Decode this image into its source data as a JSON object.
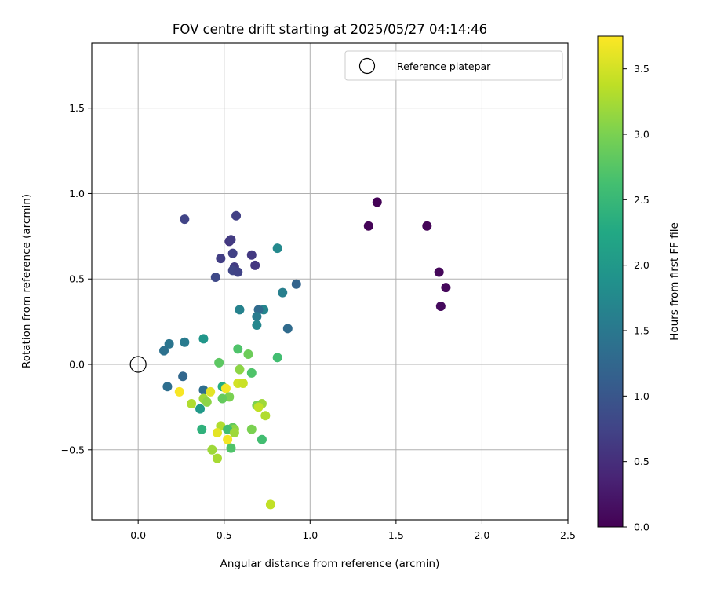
{
  "chart_data": {
    "type": "scatter",
    "title": "FOV centre drift starting at 2025/05/27 04:14:46",
    "xlabel": "Angular distance from reference (arcmin)",
    "ylabel": "Rotation from reference (arcmin)",
    "xlim": [
      -0.27,
      2.5
    ],
    "ylim": [
      -0.91,
      1.88
    ],
    "xticks": [
      0.0,
      0.5,
      1.0,
      1.5,
      2.0,
      2.5
    ],
    "yticks": [
      -0.5,
      0.0,
      0.5,
      1.0,
      1.5
    ],
    "xtick_labels": [
      "0.0",
      "0.5",
      "1.0",
      "1.5",
      "2.0",
      "2.5"
    ],
    "ytick_labels": [
      "−0.5",
      "0.0",
      "0.5",
      "1.0",
      "1.5"
    ],
    "grid": true,
    "legend": {
      "placement": "top-right",
      "entries": [
        "Reference platepar"
      ]
    },
    "reference_point": {
      "x": 0.0,
      "y": 0.0,
      "label": "Reference platepar"
    },
    "colorbar": {
      "label": "Hours from first FF file",
      "range": [
        0.0,
        3.75
      ],
      "ticks": [
        0.0,
        0.5,
        1.0,
        1.5,
        2.0,
        2.5,
        3.0,
        3.5
      ],
      "tick_labels": [
        "0.0",
        "0.5",
        "1.0",
        "1.5",
        "2.0",
        "2.5",
        "3.0",
        "3.5"
      ],
      "colormap": "viridis"
    },
    "points": [
      {
        "x": 1.39,
        "y": 0.95,
        "hours": 0.02
      },
      {
        "x": 1.34,
        "y": 0.81,
        "hours": 0.03
      },
      {
        "x": 1.68,
        "y": 0.81,
        "hours": 0.05
      },
      {
        "x": 1.75,
        "y": 0.54,
        "hours": 0.07
      },
      {
        "x": 1.79,
        "y": 0.45,
        "hours": 0.08
      },
      {
        "x": 1.76,
        "y": 0.34,
        "hours": 0.1
      },
      {
        "x": 0.57,
        "y": 0.87,
        "hours": 0.7
      },
      {
        "x": 0.27,
        "y": 0.85,
        "hours": 0.75
      },
      {
        "x": 0.53,
        "y": 0.72,
        "hours": 0.6
      },
      {
        "x": 0.54,
        "y": 0.73,
        "hours": 0.65
      },
      {
        "x": 0.55,
        "y": 0.65,
        "hours": 0.72
      },
      {
        "x": 0.48,
        "y": 0.62,
        "hours": 0.68
      },
      {
        "x": 0.66,
        "y": 0.64,
        "hours": 0.62
      },
      {
        "x": 0.56,
        "y": 0.57,
        "hours": 0.66
      },
      {
        "x": 0.55,
        "y": 0.55,
        "hours": 0.78
      },
      {
        "x": 0.58,
        "y": 0.54,
        "hours": 0.74
      },
      {
        "x": 0.68,
        "y": 0.58,
        "hours": 0.6
      },
      {
        "x": 0.45,
        "y": 0.51,
        "hours": 0.82
      },
      {
        "x": 0.92,
        "y": 0.47,
        "hours": 1.2
      },
      {
        "x": 0.81,
        "y": 0.68,
        "hours": 1.75
      },
      {
        "x": 0.84,
        "y": 0.42,
        "hours": 1.6
      },
      {
        "x": 0.73,
        "y": 0.32,
        "hours": 1.7
      },
      {
        "x": 0.7,
        "y": 0.32,
        "hours": 1.3
      },
      {
        "x": 0.59,
        "y": 0.32,
        "hours": 1.65
      },
      {
        "x": 0.69,
        "y": 0.28,
        "hours": 1.55
      },
      {
        "x": 0.69,
        "y": 0.23,
        "hours": 1.72
      },
      {
        "x": 0.87,
        "y": 0.21,
        "hours": 1.3
      },
      {
        "x": 0.38,
        "y": 0.15,
        "hours": 1.95
      },
      {
        "x": 0.27,
        "y": 0.13,
        "hours": 1.55
      },
      {
        "x": 0.18,
        "y": 0.12,
        "hours": 1.45
      },
      {
        "x": 0.15,
        "y": 0.08,
        "hours": 1.4
      },
      {
        "x": 0.58,
        "y": 0.09,
        "hours": 2.7
      },
      {
        "x": 0.64,
        "y": 0.06,
        "hours": 2.9
      },
      {
        "x": 0.81,
        "y": 0.04,
        "hours": 2.6
      },
      {
        "x": 0.47,
        "y": 0.01,
        "hours": 2.8
      },
      {
        "x": 0.59,
        "y": -0.03,
        "hours": 3.1
      },
      {
        "x": 0.66,
        "y": -0.05,
        "hours": 2.7
      },
      {
        "x": 0.26,
        "y": -0.07,
        "hours": 1.25
      },
      {
        "x": 0.58,
        "y": -0.11,
        "hours": 3.5
      },
      {
        "x": 0.61,
        "y": -0.11,
        "hours": 3.45
      },
      {
        "x": 0.17,
        "y": -0.13,
        "hours": 1.35
      },
      {
        "x": 0.49,
        "y": -0.13,
        "hours": 2.3
      },
      {
        "x": 0.51,
        "y": -0.14,
        "hours": 3.7
      },
      {
        "x": 0.38,
        "y": -0.15,
        "hours": 1.35
      },
      {
        "x": 0.24,
        "y": -0.16,
        "hours": 3.72
      },
      {
        "x": 0.42,
        "y": -0.16,
        "hours": 3.6
      },
      {
        "x": 0.53,
        "y": -0.19,
        "hours": 3.0
      },
      {
        "x": 0.49,
        "y": -0.2,
        "hours": 2.85
      },
      {
        "x": 0.38,
        "y": -0.2,
        "hours": 3.2
      },
      {
        "x": 0.4,
        "y": -0.22,
        "hours": 3.1
      },
      {
        "x": 0.31,
        "y": -0.23,
        "hours": 3.3
      },
      {
        "x": 0.72,
        "y": -0.23,
        "hours": 3.2
      },
      {
        "x": 0.69,
        "y": -0.24,
        "hours": 3.0
      },
      {
        "x": 0.7,
        "y": -0.25,
        "hours": 3.4
      },
      {
        "x": 0.36,
        "y": -0.26,
        "hours": 2.0
      },
      {
        "x": 0.74,
        "y": -0.3,
        "hours": 3.3
      },
      {
        "x": 0.48,
        "y": -0.36,
        "hours": 3.3
      },
      {
        "x": 0.55,
        "y": -0.37,
        "hours": 2.85
      },
      {
        "x": 0.56,
        "y": -0.38,
        "hours": 3.1
      },
      {
        "x": 0.52,
        "y": -0.38,
        "hours": 2.6
      },
      {
        "x": 0.37,
        "y": -0.38,
        "hours": 2.4
      },
      {
        "x": 0.66,
        "y": -0.38,
        "hours": 3.0
      },
      {
        "x": 0.56,
        "y": -0.4,
        "hours": 3.2
      },
      {
        "x": 0.46,
        "y": -0.4,
        "hours": 3.6
      },
      {
        "x": 0.72,
        "y": -0.44,
        "hours": 2.6
      },
      {
        "x": 0.52,
        "y": -0.44,
        "hours": 3.7
      },
      {
        "x": 0.54,
        "y": -0.49,
        "hours": 2.7
      },
      {
        "x": 0.43,
        "y": -0.5,
        "hours": 3.2
      },
      {
        "x": 0.46,
        "y": -0.55,
        "hours": 3.25
      },
      {
        "x": 0.77,
        "y": -0.82,
        "hours": 3.4
      }
    ]
  }
}
